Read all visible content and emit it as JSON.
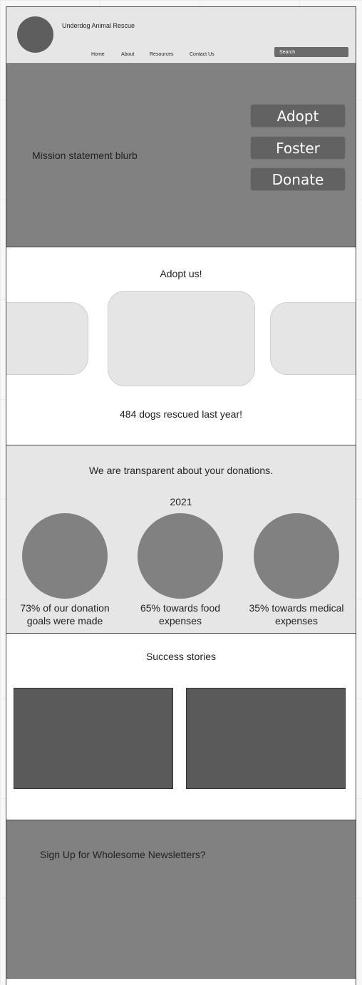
{
  "header": {
    "org_name": "Underdog Animal Rescue",
    "nav": [
      "Home",
      "About",
      "Resources",
      "Contact Us"
    ],
    "search_placeholder": "Search"
  },
  "hero": {
    "mission": "Mission statement blurb",
    "buttons": [
      "Adopt",
      "Foster",
      "Donate"
    ]
  },
  "adopt": {
    "title": "Adopt us!",
    "rescued_text": "484 dogs rescued last year!"
  },
  "donations": {
    "title": "We are transparent about your donations.",
    "year": "2021",
    "stats": [
      {
        "line1": "73% of our donation",
        "line2": "goals were made"
      },
      {
        "line1": "65% towards food",
        "line2": "expenses"
      },
      {
        "line1": "35% towards medical",
        "line2": "expenses"
      }
    ]
  },
  "stories": {
    "title": "Success stories"
  },
  "newsletter": {
    "title": "Sign Up for Wholesome Newsletters?"
  }
}
